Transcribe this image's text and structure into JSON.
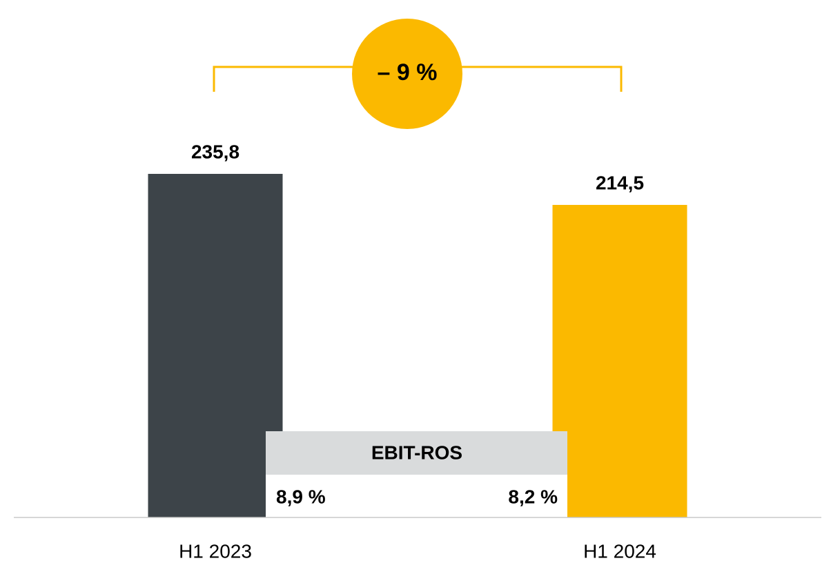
{
  "chart_data": {
    "type": "bar",
    "categories": [
      "H1 2023",
      "H1 2024"
    ],
    "series": [
      {
        "values": [
          235.8,
          214.5
        ],
        "value_labels": [
          "235,8",
          "214,5"
        ],
        "colors": [
          "#3d4449",
          "#fbb900"
        ]
      }
    ],
    "change_annotation": "– 9 %",
    "ratio_box": {
      "title": "EBIT-ROS",
      "values": [
        8.9,
        8.2
      ],
      "value_labels": [
        "8,9 %",
        "8,2 %"
      ]
    }
  }
}
